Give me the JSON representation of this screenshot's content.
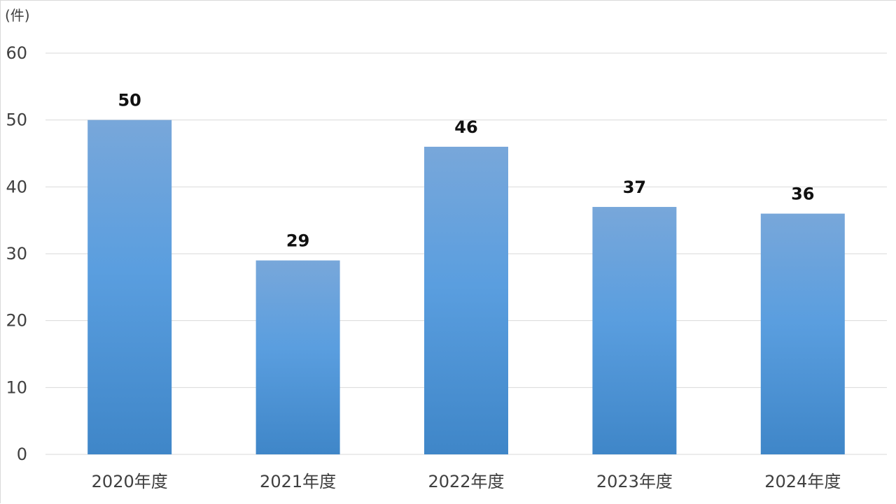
{
  "chart_data": {
    "type": "bar",
    "title": "",
    "xlabel": "",
    "ylabel": "",
    "unit_label": "(件)",
    "categories": [
      "2020年度",
      "2021年度",
      "2022年度",
      "2023年度",
      "2024年度"
    ],
    "values": [
      50,
      29,
      46,
      37,
      36
    ],
    "ylim": [
      0,
      60
    ],
    "yticks": [
      0,
      10,
      20,
      30,
      40,
      50,
      60
    ],
    "grid": true,
    "legend": "none",
    "colors": {
      "bar_top": "#78A7DA",
      "bar_middle": "#5A9EDF",
      "bar_bottom": "#3F86C8",
      "grid": "#D9D9D9",
      "axis_text": "#404040",
      "value_text": "#111111"
    }
  }
}
